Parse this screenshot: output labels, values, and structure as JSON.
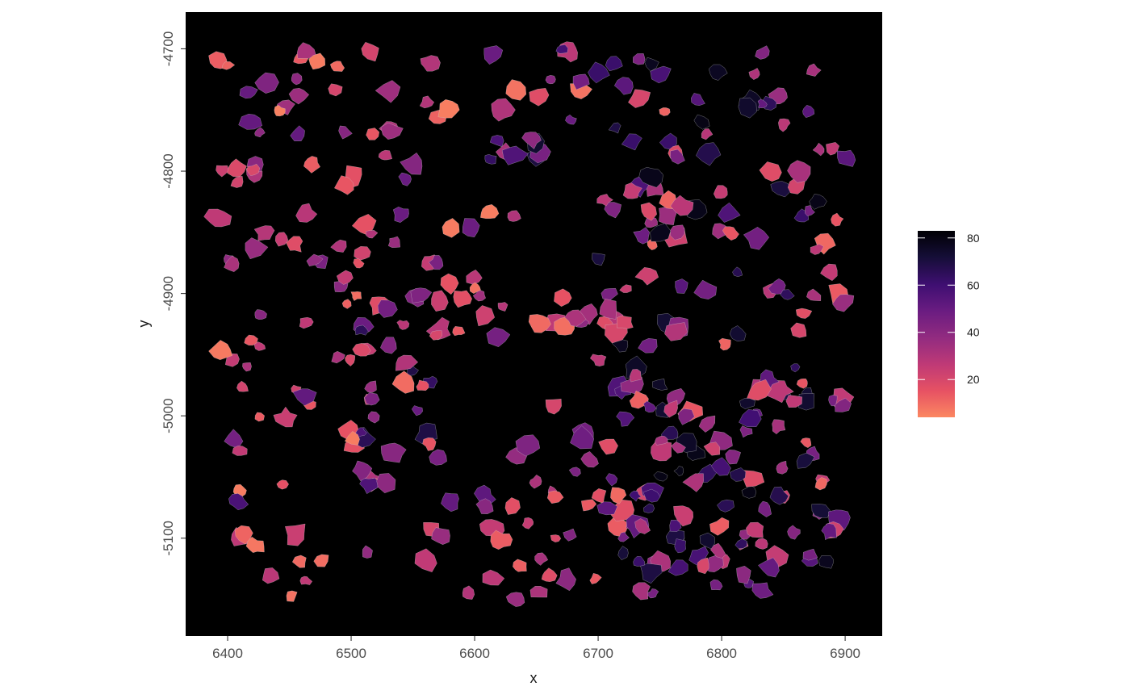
{
  "chart_data": {
    "type": "scatter",
    "title": "",
    "xlabel": "x",
    "ylabel": "y",
    "xlim": [
      6366,
      6930
    ],
    "ylim": [
      -5180,
      -4670
    ],
    "x_ticks": [
      6400,
      6500,
      6600,
      6700,
      6800,
      6900
    ],
    "y_ticks": [
      -4700,
      -4800,
      -4900,
      -5000,
      -5100
    ],
    "x_tick_labels": [
      "6400",
      "6500",
      "6600",
      "6700",
      "6800",
      "6900"
    ],
    "y_tick_labels": [
      "-4700",
      "-4800",
      "-4900",
      "-5000",
      "-5100"
    ],
    "panel_background": "#000000",
    "cell_border_color": "#cfcfcf",
    "grid": false,
    "legend": {
      "position": "right",
      "title": "",
      "range": [
        4,
        83
      ],
      "breaks": [
        20,
        40,
        60,
        80
      ],
      "break_labels": [
        "20",
        "40",
        "60",
        "80"
      ],
      "palette": [
        "#FB8761",
        "#E75263",
        "#C03A76",
        "#942C80",
        "#6A1C81",
        "#3F0F72",
        "#150E37",
        "#000004"
      ]
    }
  }
}
